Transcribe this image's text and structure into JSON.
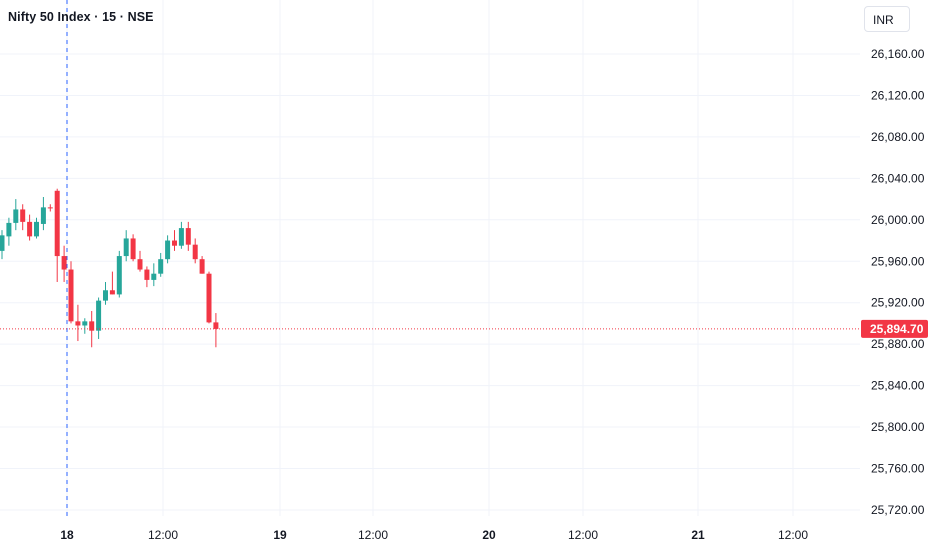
{
  "header": {
    "symbol_title": "Nifty 50 Index · 15 · NSE",
    "currency_label": "INR"
  },
  "colors": {
    "up": "#26a69a",
    "down": "#f23645",
    "grid": "#f0f3fa",
    "session_line": "#2962ff",
    "last_price": "#f23645",
    "axis_text": "#131722"
  },
  "chart_data": {
    "type": "candlestick",
    "title": "Nifty 50 Index · 15 · NSE",
    "currency": "INR",
    "y_ticks": [
      "26,160.00",
      "26,120.00",
      "26,080.00",
      "26,040.00",
      "26,000.00",
      "25,960.00",
      "25,920.00",
      "25,880.00",
      "25,840.00",
      "25,800.00",
      "25,760.00",
      "25,720.00"
    ],
    "ylim": [
      25705,
      26185
    ],
    "x_ticks": [
      {
        "label": "18",
        "bold": true
      },
      {
        "label": "12:00",
        "bold": false
      },
      {
        "label": "19",
        "bold": true
      },
      {
        "label": "12:00",
        "bold": false
      },
      {
        "label": "20",
        "bold": true
      },
      {
        "label": "12:00",
        "bold": false
      },
      {
        "label": "21",
        "bold": true
      },
      {
        "label": "12:00",
        "bold": false
      }
    ],
    "last_price": 25894.7,
    "last_price_label": "25,894.70",
    "grid": true,
    "candles": [
      {
        "o": 25970,
        "h": 25990,
        "l": 25962,
        "c": 25985
      },
      {
        "o": 25984,
        "h": 26002,
        "l": 25975,
        "c": 25997
      },
      {
        "o": 25997,
        "h": 26020,
        "l": 25990,
        "c": 26010
      },
      {
        "o": 26010,
        "h": 26015,
        "l": 25990,
        "c": 25998
      },
      {
        "o": 25998,
        "h": 26005,
        "l": 25980,
        "c": 25984
      },
      {
        "o": 25984,
        "h": 26002,
        "l": 25982,
        "c": 25998
      },
      {
        "o": 25996,
        "h": 26022,
        "l": 25990,
        "c": 26012
      },
      {
        "o": 26012,
        "h": 26015,
        "l": 26008,
        "c": 26011
      },
      {
        "o": 26028,
        "h": 26030,
        "l": 25940,
        "c": 25965
      },
      {
        "o": 25965,
        "h": 25975,
        "l": 25940,
        "c": 25952
      },
      {
        "o": 25952,
        "h": 25960,
        "l": 25900,
        "c": 25902
      },
      {
        "o": 25902,
        "h": 25918,
        "l": 25883,
        "c": 25898
      },
      {
        "o": 25898,
        "h": 25905,
        "l": 25890,
        "c": 25902
      },
      {
        "o": 25902,
        "h": 25912,
        "l": 25877,
        "c": 25893
      },
      {
        "o": 25893,
        "h": 25925,
        "l": 25885,
        "c": 25922
      },
      {
        "o": 25922,
        "h": 25940,
        "l": 25918,
        "c": 25932
      },
      {
        "o": 25932,
        "h": 25950,
        "l": 25928,
        "c": 25928
      },
      {
        "o": 25928,
        "h": 25970,
        "l": 25925,
        "c": 25965
      },
      {
        "o": 25965,
        "h": 25990,
        "l": 25960,
        "c": 25982
      },
      {
        "o": 25982,
        "h": 25986,
        "l": 25960,
        "c": 25962
      },
      {
        "o": 25962,
        "h": 25970,
        "l": 25950,
        "c": 25952
      },
      {
        "o": 25952,
        "h": 25955,
        "l": 25935,
        "c": 25942
      },
      {
        "o": 25942,
        "h": 25958,
        "l": 25936,
        "c": 25948
      },
      {
        "o": 25948,
        "h": 25968,
        "l": 25945,
        "c": 25962
      },
      {
        "o": 25962,
        "h": 25985,
        "l": 25958,
        "c": 25980
      },
      {
        "o": 25980,
        "h": 25990,
        "l": 25970,
        "c": 25975
      },
      {
        "o": 25975,
        "h": 25998,
        "l": 25972,
        "c": 25992
      },
      {
        "o": 25992,
        "h": 25998,
        "l": 25970,
        "c": 25976
      },
      {
        "o": 25976,
        "h": 25982,
        "l": 25958,
        "c": 25962
      },
      {
        "o": 25962,
        "h": 25965,
        "l": 25948,
        "c": 25948
      },
      {
        "o": 25948,
        "h": 25950,
        "l": 25900,
        "c": 25901
      },
      {
        "o": 25901,
        "h": 25910,
        "l": 25877,
        "c": 25894.7
      }
    ]
  }
}
